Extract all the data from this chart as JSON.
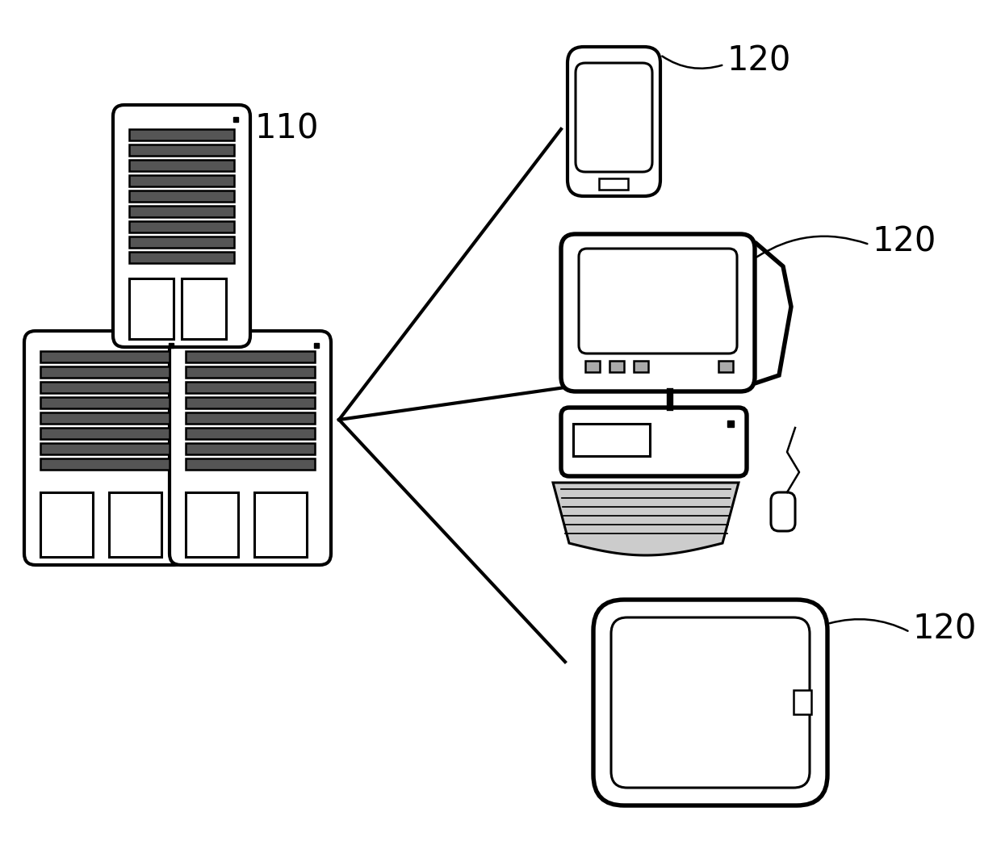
{
  "bg_color": "#ffffff",
  "line_color": "#000000",
  "lw_main": 3.0,
  "lw_thin": 1.8,
  "lw_med": 2.2,
  "label_110": "110",
  "label_120": "120",
  "label_font_size": 30,
  "figure_width": 12.4,
  "figure_height": 10.42,
  "dpi": 100
}
